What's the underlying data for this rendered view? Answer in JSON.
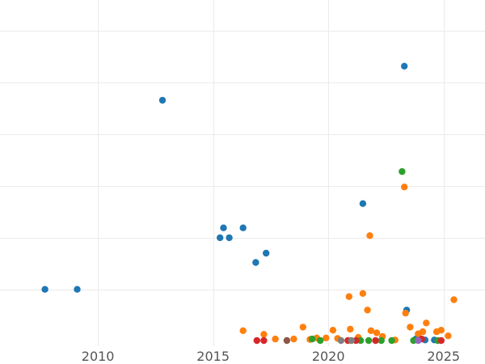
{
  "chart_data": {
    "type": "scatter",
    "title": "",
    "xlabel": "",
    "ylabel": "",
    "xlim": [
      2005.75,
      2026.8
    ],
    "ylim": [
      -0.5,
      33
    ],
    "x_ticks": [
      2010,
      2015,
      2020,
      2025
    ],
    "x_tick_labels": [
      "2010",
      "2015",
      "2020",
      "2025"
    ],
    "y_gridlines": [
      5,
      10,
      15,
      20,
      25,
      30
    ],
    "grid": true,
    "legend": "none",
    "series": [
      {
        "color": "#1f77b4",
        "points": [
          [
            2007.7,
            5.0
          ],
          [
            2009.1,
            5.0
          ],
          [
            2012.8,
            23.3
          ],
          [
            2015.3,
            10.0
          ],
          [
            2015.45,
            10.95
          ],
          [
            2015.7,
            10.0
          ],
          [
            2016.3,
            10.95
          ],
          [
            2016.85,
            7.6
          ],
          [
            2017.3,
            8.5
          ],
          [
            2021.5,
            13.3
          ],
          [
            2023.3,
            26.6
          ],
          [
            2023.4,
            3.0
          ],
          [
            2023.8,
            0.2
          ],
          [
            2024.2,
            0.1
          ],
          [
            2024.6,
            0.1
          ]
        ]
      },
      {
        "color": "#ff7f0e",
        "points": [
          [
            2016.3,
            1.0
          ],
          [
            2017.2,
            0.65
          ],
          [
            2017.7,
            0.2
          ],
          [
            2018.5,
            0.2
          ],
          [
            2018.9,
            1.35
          ],
          [
            2019.2,
            0.15
          ],
          [
            2019.5,
            0.3
          ],
          [
            2019.9,
            0.3
          ],
          [
            2020.2,
            1.05
          ],
          [
            2020.4,
            0.25
          ],
          [
            2020.9,
            4.3
          ],
          [
            2020.95,
            1.15
          ],
          [
            2021.3,
            0.35
          ],
          [
            2021.5,
            4.6
          ],
          [
            2021.7,
            3.0
          ],
          [
            2021.8,
            10.2
          ],
          [
            2021.85,
            1.0
          ],
          [
            2022.1,
            0.8
          ],
          [
            2022.35,
            0.45
          ],
          [
            2022.9,
            0.1
          ],
          [
            2023.3,
            14.9
          ],
          [
            2023.35,
            2.7
          ],
          [
            2023.55,
            1.35
          ],
          [
            2023.9,
            0.7
          ],
          [
            2024.1,
            0.9
          ],
          [
            2024.25,
            1.75
          ],
          [
            2024.7,
            0.9
          ],
          [
            2024.9,
            1.05
          ],
          [
            2025.2,
            0.5
          ],
          [
            2025.45,
            4.0
          ]
        ]
      },
      {
        "color": "#2ca02c",
        "points": [
          [
            2019.3,
            0.2
          ],
          [
            2019.65,
            0.05
          ],
          [
            2021.4,
            0.05
          ],
          [
            2021.75,
            0.05
          ],
          [
            2022.3,
            0.05
          ],
          [
            2022.75,
            0.05
          ],
          [
            2023.2,
            16.4
          ],
          [
            2023.7,
            0.05
          ],
          [
            2024.75,
            0.05
          ]
        ]
      },
      {
        "color": "#d62728",
        "points": [
          [
            2016.9,
            0.05
          ],
          [
            2017.2,
            0.05
          ],
          [
            2020.85,
            0.05
          ],
          [
            2021.2,
            0.05
          ],
          [
            2022.05,
            0.05
          ],
          [
            2024.05,
            0.2
          ],
          [
            2024.9,
            0.05
          ]
        ]
      },
      {
        "color": "#9467bd",
        "points": [
          [
            2023.9,
            0.05
          ]
        ]
      },
      {
        "color": "#8c564b",
        "points": [
          [
            2018.2,
            0.05
          ]
        ]
      },
      {
        "color": "#7f7f7f",
        "points": [
          [
            2020.55,
            0.05
          ],
          [
            2021.0,
            0.05
          ]
        ]
      }
    ]
  }
}
